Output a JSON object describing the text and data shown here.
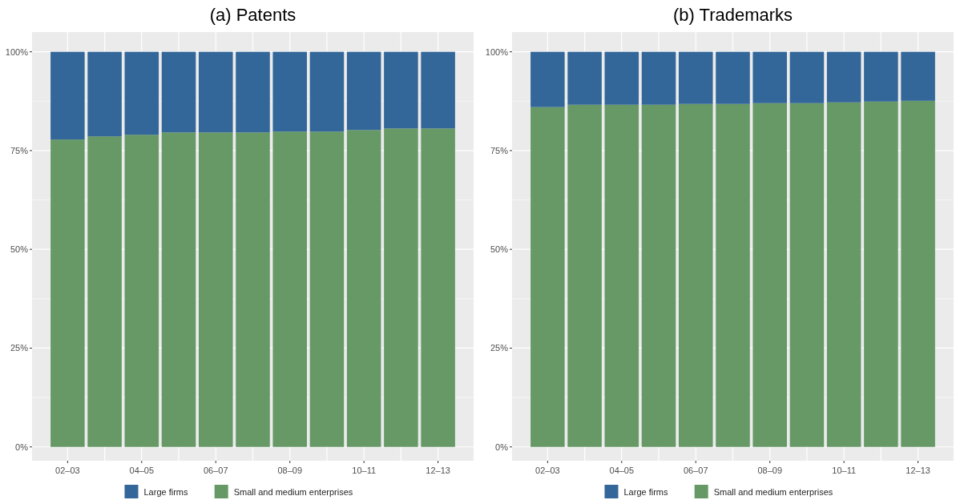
{
  "chart_data": [
    {
      "type": "bar",
      "title": "(a) Patents",
      "stacked": true,
      "categories": [
        "02–03",
        null,
        "04–05",
        null,
        "06–07",
        null,
        "08–09",
        null,
        "10–11",
        null,
        "12–13"
      ],
      "ylim": [
        -3.5,
        105
      ],
      "yticks": [
        {
          "value": 0,
          "label": "0%"
        },
        {
          "value": 25,
          "label": "25%"
        },
        {
          "value": 50,
          "label": "50%"
        },
        {
          "value": 75,
          "label": "75%"
        },
        {
          "value": 100,
          "label": "100%"
        }
      ],
      "grid": true,
      "legend": "bottom",
      "series": [
        {
          "name": "Small and medium enterprises",
          "color": "#669966",
          "values": [
            77.8,
            78.6,
            79.0,
            79.6,
            79.6,
            79.6,
            79.8,
            79.8,
            80.2,
            80.6,
            80.6
          ]
        },
        {
          "name": "Large firms",
          "color": "#336699",
          "values": [
            22.2,
            21.4,
            21.0,
            20.4,
            20.4,
            20.4,
            20.2,
            20.2,
            19.8,
            19.4,
            19.4
          ]
        }
      ]
    },
    {
      "type": "bar",
      "title": "(b) Trademarks",
      "stacked": true,
      "categories": [
        "02–03",
        null,
        "04–05",
        null,
        "06–07",
        null,
        "08–09",
        null,
        "10–11",
        null,
        "12–13"
      ],
      "ylim": [
        -3.5,
        105
      ],
      "yticks": [
        {
          "value": 0,
          "label": "0%"
        },
        {
          "value": 25,
          "label": "25%"
        },
        {
          "value": 50,
          "label": "50%"
        },
        {
          "value": 75,
          "label": "75%"
        },
        {
          "value": 100,
          "label": "100%"
        }
      ],
      "grid": true,
      "legend": "bottom",
      "series": [
        {
          "name": "Small and medium enterprises",
          "color": "#669966",
          "values": [
            86.0,
            86.6,
            86.6,
            86.6,
            86.8,
            86.8,
            87.0,
            87.0,
            87.2,
            87.4,
            87.6
          ]
        },
        {
          "name": "Large firms",
          "color": "#336699",
          "values": [
            14.0,
            13.4,
            13.4,
            13.4,
            13.2,
            13.2,
            13.0,
            13.0,
            12.8,
            12.6,
            12.4
          ]
        }
      ]
    }
  ]
}
